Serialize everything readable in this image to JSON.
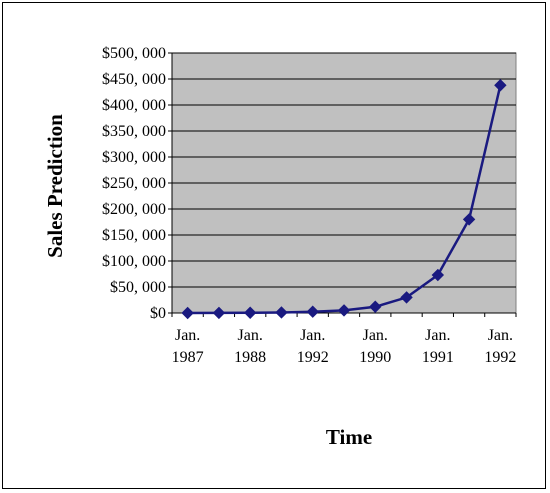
{
  "chart_data": {
    "type": "line",
    "xlabel": "Time",
    "ylabel": "Sales Prediction",
    "ylim": [
      0,
      500000
    ],
    "yticks": [
      "$0",
      "$50, 000",
      "$100, 000",
      "$150, 000",
      "$200, 000",
      "$250, 000",
      "$300, 000",
      "$350, 000",
      "$400, 000",
      "$450, 000",
      "$500, 000"
    ],
    "x_tick_labels": [
      {
        "line1": "Jan.",
        "line2": "1987"
      },
      {
        "line1": "Jan.",
        "line2": "1988"
      },
      {
        "line1": "Jan.",
        "line2": "1992"
      },
      {
        "line1": "Jan.",
        "line2": "1990"
      },
      {
        "line1": "Jan.",
        "line2": "1991"
      },
      {
        "line1": "Jan.",
        "line2": "1992"
      }
    ],
    "grid": true,
    "background_color": "#c0c0c0",
    "line_color": "#1a1a80",
    "values": [
      0,
      200,
      500,
      1000,
      2500,
      5000,
      12000,
      30000,
      73000,
      180000,
      438000
    ]
  }
}
